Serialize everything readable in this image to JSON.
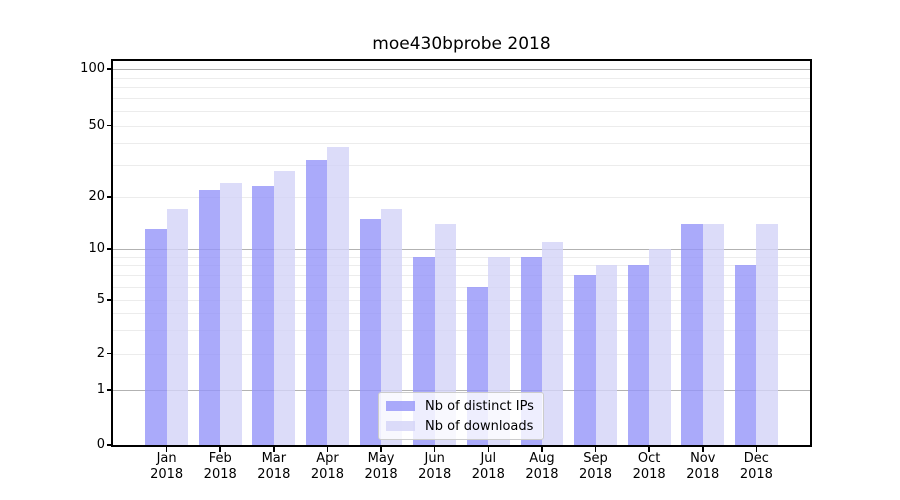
{
  "chart_data": {
    "type": "bar",
    "title": "moe430bprobe 2018",
    "categories": [
      "Jan 2018",
      "Feb 2018",
      "Mar 2018",
      "Apr 2018",
      "May 2018",
      "Jun 2018",
      "Jul 2018",
      "Aug 2018",
      "Sep 2018",
      "Oct 2018",
      "Nov 2018",
      "Dec 2018"
    ],
    "series": [
      {
        "name": "Nb of distinct IPs",
        "color": "rgba(149,149,249,0.8)",
        "values": [
          13,
          22,
          23,
          32,
          15,
          9,
          6,
          9,
          7,
          8,
          14,
          8
        ]
      },
      {
        "name": "Nb of downloads",
        "color": "rgba(211,211,248,0.8)",
        "values": [
          17,
          24,
          28,
          38,
          17,
          14,
          9,
          11,
          8,
          10,
          14,
          14
        ]
      }
    ],
    "xlabel": "",
    "ylabel": "",
    "yscale": "log above 1, linear 0-1",
    "yticks": [
      0,
      1,
      2,
      5,
      10,
      20,
      50,
      100
    ],
    "minor_yticks": [
      2,
      3,
      4,
      5,
      6,
      7,
      8,
      9,
      20,
      30,
      40,
      50,
      60,
      70,
      80,
      90
    ],
    "major_grid_values": [
      1,
      10,
      100
    ],
    "ylim": [
      0,
      111
    ],
    "grid": true,
    "legend_position": "lower center",
    "colors": {
      "bar_dark": "rgba(149,149,249,0.8)",
      "bar_light": "rgba(211,211,248,0.8)",
      "grid_minor": "#ececec",
      "grid_major": "#b2b2b2",
      "spine": "#000000"
    }
  }
}
